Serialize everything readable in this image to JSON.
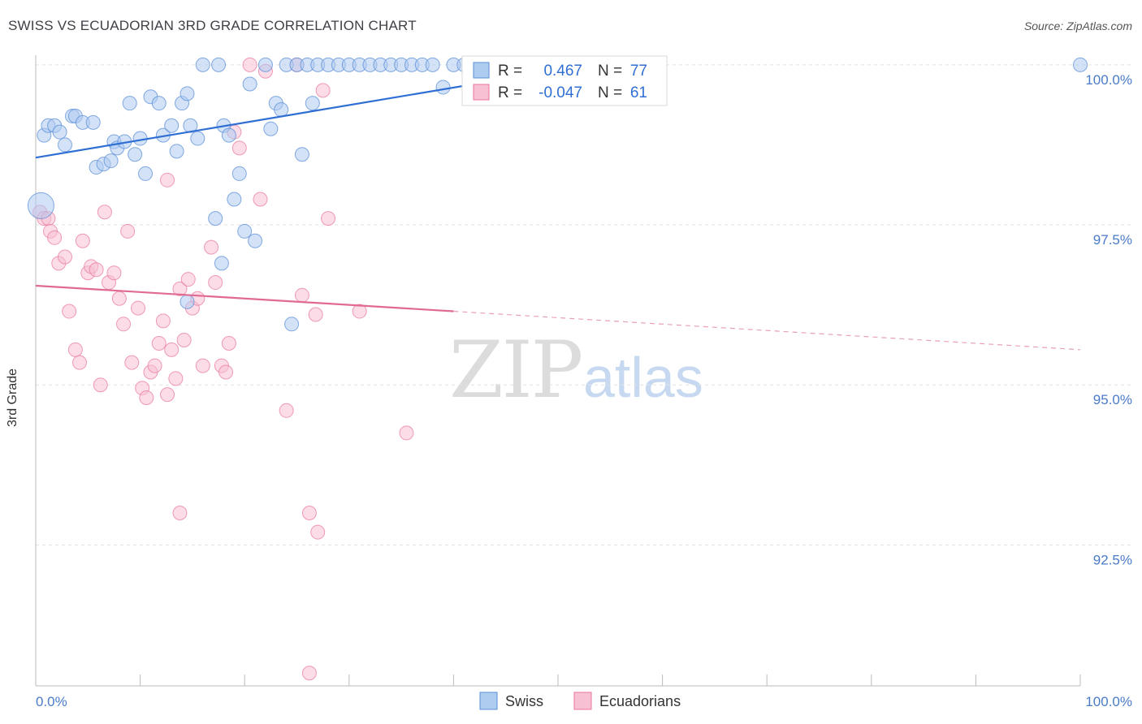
{
  "chart_data": {
    "type": "scatter",
    "title": "SWISS VS ECUADORIAN 3RD GRADE CORRELATION CHART",
    "source": "Source: ZipAtlas.com",
    "xlabel": "",
    "ylabel": "3rd Grade",
    "xlim": [
      0,
      100
    ],
    "ylim": [
      90.3,
      100.4
    ],
    "x_tick_labels": [
      "0.0%",
      "100.0%"
    ],
    "y_ticks": [
      92.5,
      95.0,
      97.5,
      100.0
    ],
    "y_tick_labels": [
      "92.5%",
      "95.0%",
      "97.5%",
      "100.0%"
    ],
    "watermark": {
      "zip": "ZIP",
      "atlas": "atlas"
    },
    "colors": {
      "swiss": "#5b8fd8",
      "swiss_fill": "#aecbf0",
      "ecuadorian": "#e8759c",
      "ecuadorian_fill": "#f7c0d3",
      "tick": "#4a7bc8"
    },
    "stats": [
      {
        "r_label": "R =",
        "r_value": "0.467",
        "n_label": "N =",
        "n_value": "77"
      },
      {
        "r_label": "R =",
        "r_value": "-0.047",
        "n_label": "N =",
        "n_value": "61"
      }
    ],
    "legend": [
      "Swiss",
      "Ecuadorians"
    ],
    "series": [
      {
        "name": "Swiss",
        "trend": {
          "x0": 0,
          "y0": 98.55,
          "x1": 53,
          "y1": 100.0
        },
        "points": [
          [
            0.5,
            97.8
          ],
          [
            0.8,
            98.9
          ],
          [
            1.2,
            99.05
          ],
          [
            1.8,
            99.05
          ],
          [
            2.3,
            98.95
          ],
          [
            2.8,
            98.75
          ],
          [
            3.5,
            99.2
          ],
          [
            3.8,
            99.2
          ],
          [
            4.5,
            99.1
          ],
          [
            5.5,
            99.1
          ],
          [
            5.8,
            98.4
          ],
          [
            6.5,
            98.45
          ],
          [
            7.2,
            98.5
          ],
          [
            7.5,
            98.8
          ],
          [
            7.8,
            98.7
          ],
          [
            8.5,
            98.8
          ],
          [
            9,
            99.4
          ],
          [
            9.5,
            98.6
          ],
          [
            10,
            98.85
          ],
          [
            10.5,
            98.3
          ],
          [
            11,
            99.5
          ],
          [
            11.8,
            99.4
          ],
          [
            12.2,
            98.9
          ],
          [
            13,
            99.05
          ],
          [
            13.5,
            98.65
          ],
          [
            14,
            99.4
          ],
          [
            14.5,
            99.55
          ],
          [
            14.8,
            99.05
          ],
          [
            15.5,
            98.85
          ],
          [
            16,
            100
          ],
          [
            17.5,
            100
          ],
          [
            17.2,
            97.6
          ],
          [
            17.8,
            96.9
          ],
          [
            18,
            99.05
          ],
          [
            18.5,
            98.9
          ],
          [
            19,
            97.9
          ],
          [
            19.5,
            98.3
          ],
          [
            20,
            97.4
          ],
          [
            20.5,
            99.7
          ],
          [
            21,
            97.25
          ],
          [
            22,
            100
          ],
          [
            22.5,
            99.0
          ],
          [
            23,
            99.4
          ],
          [
            23.5,
            99.3
          ],
          [
            24,
            100
          ],
          [
            25,
            100
          ],
          [
            26,
            100
          ],
          [
            27,
            100
          ],
          [
            25.5,
            98.6
          ],
          [
            26.5,
            99.4
          ],
          [
            28,
            100
          ],
          [
            29,
            100
          ],
          [
            30,
            100
          ],
          [
            31,
            100
          ],
          [
            32,
            100
          ],
          [
            33,
            100
          ],
          [
            34,
            100
          ],
          [
            35,
            100
          ],
          [
            36,
            100
          ],
          [
            37,
            100
          ],
          [
            38,
            100
          ],
          [
            39,
            99.65
          ],
          [
            40,
            100
          ],
          [
            41,
            100
          ],
          [
            42,
            100
          ],
          [
            43,
            99.6
          ],
          [
            44,
            100
          ],
          [
            46,
            100
          ],
          [
            47,
            100
          ],
          [
            48,
            100
          ],
          [
            50,
            100
          ],
          [
            54.5,
            100
          ],
          [
            55,
            100
          ],
          [
            59,
            100
          ],
          [
            100,
            100
          ],
          [
            14.5,
            96.3
          ],
          [
            24.5,
            95.95
          ]
        ]
      },
      {
        "name": "Ecuadorians",
        "trend": {
          "x0": 0,
          "y0": 96.55,
          "x1": 40,
          "y1": 96.15,
          "dash_x1": 100,
          "dash_y1": 95.55
        },
        "points": [
          [
            0.4,
            97.7
          ],
          [
            0.8,
            97.6
          ],
          [
            1.2,
            97.6
          ],
          [
            1.4,
            97.4
          ],
          [
            1.8,
            97.3
          ],
          [
            2.2,
            96.9
          ],
          [
            2.8,
            97.0
          ],
          [
            3.2,
            96.15
          ],
          [
            3.8,
            95.55
          ],
          [
            4.2,
            95.35
          ],
          [
            4.5,
            97.25
          ],
          [
            5,
            96.75
          ],
          [
            5.3,
            96.85
          ],
          [
            5.8,
            96.8
          ],
          [
            6.2,
            95.0
          ],
          [
            6.6,
            97.7
          ],
          [
            7,
            96.6
          ],
          [
            7.5,
            96.75
          ],
          [
            8,
            96.35
          ],
          [
            8.4,
            95.95
          ],
          [
            8.8,
            97.4
          ],
          [
            9.2,
            95.35
          ],
          [
            9.8,
            96.2
          ],
          [
            10.2,
            94.95
          ],
          [
            10.6,
            94.8
          ],
          [
            11,
            95.2
          ],
          [
            11.4,
            95.3
          ],
          [
            11.8,
            95.65
          ],
          [
            12.2,
            96.0
          ],
          [
            12.6,
            94.85
          ],
          [
            13,
            95.55
          ],
          [
            13.4,
            95.1
          ],
          [
            13.8,
            96.5
          ],
          [
            14.2,
            95.7
          ],
          [
            14.6,
            96.65
          ],
          [
            15,
            96.2
          ],
          [
            15.5,
            96.35
          ],
          [
            16,
            95.3
          ],
          [
            16.8,
            97.15
          ],
          [
            17.2,
            96.6
          ],
          [
            17.8,
            95.3
          ],
          [
            18.2,
            95.2
          ],
          [
            18.5,
            95.65
          ],
          [
            19,
            98.95
          ],
          [
            19.5,
            98.7
          ],
          [
            20.5,
            100
          ],
          [
            21.5,
            97.9
          ],
          [
            22,
            99.9
          ],
          [
            24,
            94.6
          ],
          [
            25,
            100
          ],
          [
            25.5,
            96.4
          ],
          [
            26.2,
            93.0
          ],
          [
            26.8,
            96.1
          ],
          [
            27.5,
            99.6
          ],
          [
            28,
            97.6
          ],
          [
            13.8,
            93.0
          ],
          [
            12.6,
            98.2
          ],
          [
            27,
            92.7
          ],
          [
            35.5,
            94.25
          ],
          [
            26.2,
            90.5
          ],
          [
            31,
            96.15
          ]
        ]
      }
    ]
  }
}
